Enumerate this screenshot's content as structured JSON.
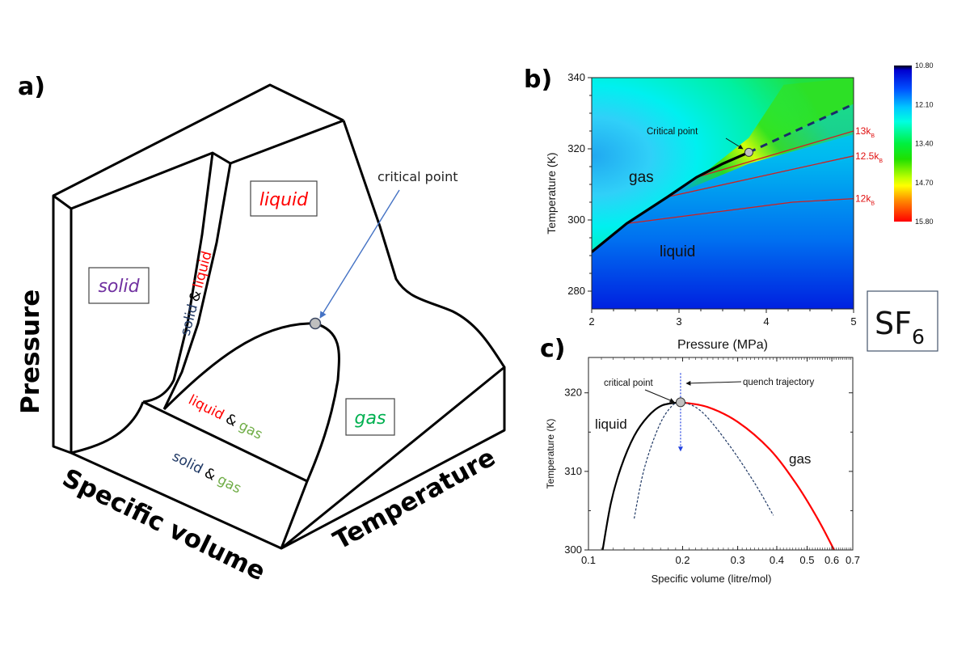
{
  "panel_a": {
    "label": "a)",
    "axes": {
      "pressure": "Pressure",
      "specific_volume": "Specific volume",
      "temperature": "Temperature"
    },
    "phases": {
      "solid": "solid",
      "liquid": "liquid",
      "gas": "gas"
    },
    "mixtures": {
      "solid_liquid": {
        "part1": "solid",
        "amp": "&",
        "part2": "liquid"
      },
      "liquid_gas": {
        "part1": "liquid",
        "amp": "&",
        "part2": "gas"
      },
      "solid_gas": {
        "part1": "solid",
        "amp": "&",
        "part2": "gas"
      }
    },
    "critical_point_label": "critical point",
    "colors": {
      "solid": "#7030a0",
      "liquid": "#ff0000",
      "gas": "#00b050",
      "gas_mix": "#70ad47",
      "solid_mix": "#1f3864",
      "arrow": "#4472c4"
    }
  },
  "substance_label": {
    "base": "SF",
    "subscript": "6"
  },
  "chart_data": [
    {
      "id": "b",
      "label": "b)",
      "type": "heatmap",
      "xlabel": "Pressure (MPa)",
      "ylabel": "Temperature (K)",
      "xlim": [
        2,
        5
      ],
      "ylim": [
        275,
        340
      ],
      "xticks": [
        2,
        3,
        4,
        5
      ],
      "yticks": [
        280,
        300,
        320,
        340
      ],
      "colorbar": {
        "ticks": [
          "10.80",
          "12.10",
          "13.40",
          "14.70",
          "15.80"
        ],
        "range": [
          10.8,
          15.8
        ],
        "colors": [
          "#000000",
          "#0000ff",
          "#00a0ff",
          "#00ffff",
          "#00ff40",
          "#00e000",
          "#80ff00",
          "#ffff00",
          "#ff8000",
          "#ff0000"
        ]
      },
      "regions": {
        "gas": "gas",
        "liquid": "liquid"
      },
      "coexistence_line": {
        "P": [
          2.0,
          2.4,
          2.87,
          3.2,
          3.5,
          3.8
        ],
        "T": [
          291,
          299,
          306.5,
          312,
          315.8,
          319
        ]
      },
      "widom_line_dashed": {
        "P": [
          3.8,
          4.95
        ],
        "T": [
          319,
          332
        ]
      },
      "critical_point": {
        "P": 3.8,
        "T": 319,
        "label": "Critical point"
      },
      "isolines": [
        {
          "name": "13k_B",
          "label_main": "13k",
          "label_sub": "B",
          "P": [
            3.2,
            5.0
          ],
          "T": [
            312,
            325
          ]
        },
        {
          "name": "12.5k_B",
          "label_main": "12.5k",
          "label_sub": "B",
          "P": [
            2.87,
            5.0
          ],
          "T": [
            306.5,
            318
          ]
        },
        {
          "name": "12k_B",
          "label_main": "12k",
          "label_sub": "B",
          "P": [
            2.4,
            4.3,
            5.0
          ],
          "T": [
            299,
            305,
            306
          ]
        }
      ]
    },
    {
      "id": "c",
      "label": "c)",
      "type": "line",
      "xlabel": "Specific volume (litre/mol)",
      "ylabel": "Temperature (K)",
      "xscale": "log",
      "xlim": [
        0.1,
        0.7
      ],
      "ylim": [
        300,
        324.5
      ],
      "xticks": [
        "0.1",
        "0.2",
        "0.3",
        "0.4",
        "0.5",
        "0.6",
        "0.7"
      ],
      "yticks": [
        300,
        310,
        320
      ],
      "regions": {
        "liquid": "liquid",
        "gas": "gas"
      },
      "critical_point": {
        "v": 0.197,
        "T": 318.8,
        "label": "critical point"
      },
      "quench": {
        "label": "quench trajectory",
        "v": 0.197,
        "T_from": 322.5,
        "T_to": 312.6
      },
      "series": [
        {
          "name": "liquid binodal",
          "color": "#000000",
          "v": [
            0.111,
            0.118,
            0.127,
            0.14,
            0.155,
            0.172,
            0.197
          ],
          "T": [
            300,
            306,
            310.5,
            314.5,
            317,
            318.4,
            318.8
          ]
        },
        {
          "name": "gas binodal",
          "color": "#ff0000",
          "v": [
            0.197,
            0.24,
            0.3,
            0.38,
            0.46,
            0.54,
            0.61
          ],
          "T": [
            318.8,
            318.2,
            316.3,
            312.8,
            308.5,
            304,
            300
          ]
        },
        {
          "name": "spinodal",
          "color": "#1f3864",
          "dashed": true,
          "v": [
            0.14,
            0.15,
            0.165,
            0.18,
            0.197,
            0.23,
            0.28,
            0.34,
            0.39
          ],
          "T": [
            304,
            310,
            315,
            317.8,
            318.8,
            317.6,
            313.5,
            308.5,
            304.4
          ]
        }
      ]
    }
  ]
}
